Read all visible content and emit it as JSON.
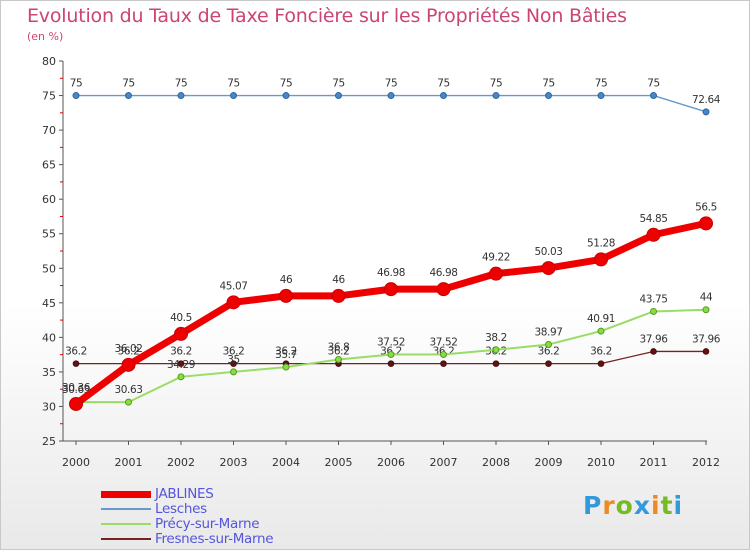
{
  "title": "Evolution du Taux de Taxe Foncière sur les Propriétés Non Bâties",
  "unit_label": "(en %)",
  "logo": {
    "letters": [
      "P",
      "r",
      "o",
      "x",
      "i",
      "t",
      "i"
    ],
    "colors": [
      "#3399dd",
      "#ee8822",
      "#77bb22",
      "#3399dd",
      "#ee8822",
      "#77bb22",
      "#3399dd"
    ]
  },
  "chart_data": {
    "type": "line",
    "title": "Evolution du Taux de Taxe Foncière sur les Propriétés Non Bâties",
    "ylabel": "(en %)",
    "xlabel": "",
    "categories": [
      "2000",
      "2001",
      "2002",
      "2003",
      "2004",
      "2005",
      "2006",
      "2007",
      "2008",
      "2009",
      "2010",
      "2011",
      "2012"
    ],
    "y_ticks": [
      25,
      30,
      35,
      40,
      45,
      50,
      55,
      60,
      65,
      70,
      75,
      80
    ],
    "ylim": [
      25,
      80
    ],
    "grid": false,
    "legend_position": "bottom-left",
    "series": [
      {
        "name": "Fresnes-sur-Marne",
        "color": "#772222",
        "values": [
          36.2,
          36.2,
          36.2,
          36.2,
          36.2,
          36.2,
          36.2,
          36.2,
          36.2,
          36.2,
          36.2,
          37.96,
          37.96
        ],
        "labels": [
          "36.2",
          "36.2",
          "36.2",
          "36.2",
          "36.2",
          "36.2",
          "36.2",
          "36.2",
          "36.2",
          "36.2",
          "36.2",
          "37.96",
          "37.96"
        ]
      },
      {
        "name": "Précy-sur-Marne",
        "color": "#99dd66",
        "values": [
          30.63,
          30.63,
          34.29,
          35.0,
          35.7,
          36.8,
          37.52,
          37.52,
          38.2,
          38.97,
          40.91,
          43.75,
          44.0
        ],
        "labels": [
          "30.63",
          "30.63",
          "34.29",
          "35",
          "35.7",
          "36.8",
          "37.52",
          "37.52",
          "38.2",
          "38.97",
          "40.91",
          "43.75",
          "44"
        ]
      },
      {
        "name": "Lesches",
        "color": "#6699cc",
        "values": [
          75,
          75,
          75,
          75,
          75,
          75,
          75,
          75,
          75,
          75,
          75,
          75,
          72.64
        ],
        "labels": [
          "75",
          "75",
          "75",
          "75",
          "75",
          "75",
          "75",
          "75",
          "75",
          "75",
          "75",
          "75",
          "72.64"
        ]
      },
      {
        "name": "JABLINES",
        "color": "#ee0000",
        "values": [
          30.36,
          36.02,
          40.5,
          45.07,
          46.0,
          46.0,
          46.98,
          46.98,
          49.22,
          50.03,
          51.28,
          54.85,
          56.5
        ],
        "labels": [
          "30.36",
          "36.02",
          "40.5",
          "45.07",
          "46",
          "46",
          "46.98",
          "46.98",
          "49.22",
          "50.03",
          "51.28",
          "54.85",
          "56.5"
        ]
      }
    ]
  }
}
